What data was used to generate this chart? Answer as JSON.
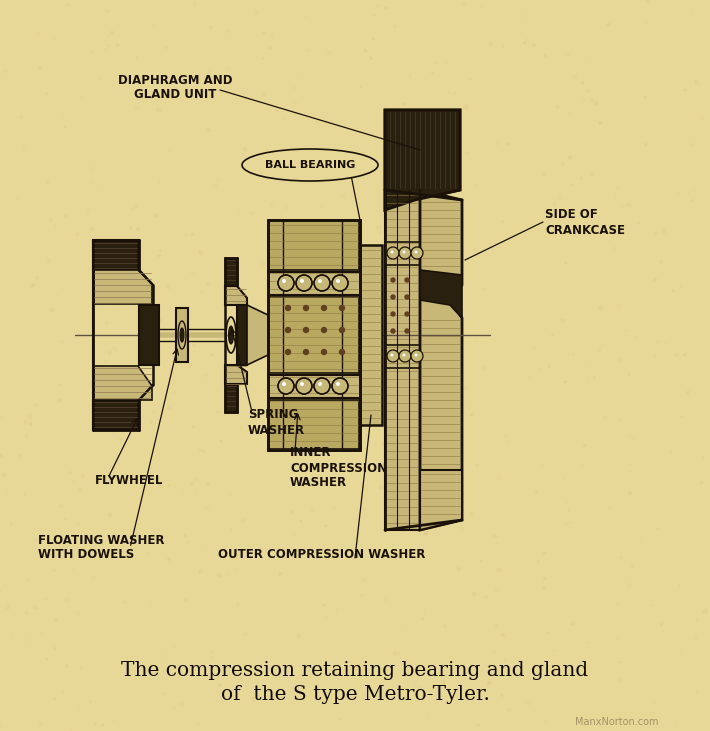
{
  "bg_color": "#e8d898",
  "ink_color": "#1a1208",
  "dark_fill": "#2a2010",
  "mid_fill": "#706040",
  "light_fill": "#c8b878",
  "checker_fill": "#d0c080",
  "fig_width": 7.1,
  "fig_height": 7.31,
  "dpi": 100,
  "title_line1": "The compression retaining bearing and gland",
  "title_line2": "of  the S type Metro-Tyler.",
  "watermark": "ManxNorton.com",
  "label_diaphragm_1": "DIAPHRAGM AND",
  "label_diaphragm_2": "GLAND UNIT",
  "label_ball": "BALL BEARING",
  "label_side_1": "SIDE OF",
  "label_side_2": "CRANKCASE",
  "label_spring_1": "SPRING",
  "label_spring_2": "WASHER",
  "label_flywheel": "FLYWHEEL",
  "label_floating_1": "FLOATING WASHER",
  "label_floating_2": "WITH DOWELS",
  "label_inner_1": "INNER",
  "label_inner_2": "COMPRESSION",
  "label_inner_3": "WASHER",
  "label_outer": "OUTER COMPRESSION WASHER"
}
